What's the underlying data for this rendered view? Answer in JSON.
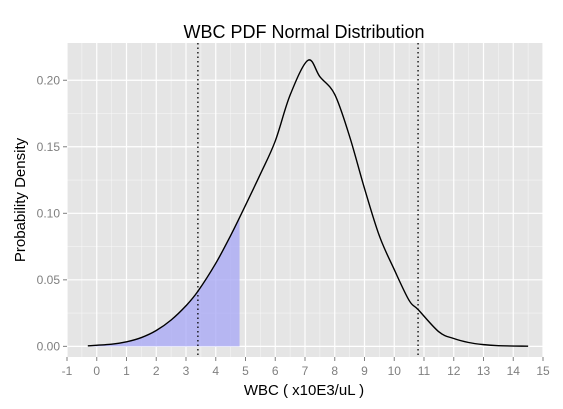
{
  "chart_data": {
    "type": "line",
    "title": "WBC PDF Normal Distribution",
    "xlabel": "WBC ( x10E3/uL )",
    "ylabel": "Probability Density",
    "xlim": [
      -1,
      15
    ],
    "ylim": [
      -0.008,
      0.228
    ],
    "x_ticks": [
      -1,
      0,
      1,
      2,
      3,
      4,
      5,
      6,
      7,
      8,
      9,
      10,
      11,
      12,
      13,
      14,
      15
    ],
    "y_ticks": [
      0,
      0.05,
      0.1,
      0.15,
      0.2
    ],
    "x_tick_labels": [
      "-1",
      "0",
      "1",
      "2",
      "3",
      "4",
      "5",
      "6",
      "7",
      "8",
      "9",
      "10",
      "11",
      "12",
      "13",
      "14",
      "15"
    ],
    "y_tick_labels": [
      "0.00",
      "0.05",
      "0.10",
      "0.15",
      "0.20"
    ],
    "series": [
      {
        "x": [
          -0.3,
          0.5,
          1.0,
          1.5,
          2.0,
          2.5,
          3.0,
          3.4,
          4.0,
          4.5,
          4.8,
          5.5,
          6.0,
          6.5,
          7.1,
          7.5,
          8.0,
          8.5,
          9.0,
          9.5,
          10.0,
          10.5,
          10.8,
          11.5,
          12.0,
          12.5,
          13.0,
          13.5,
          14.5
        ],
        "y": [
          0.0004,
          0.0016,
          0.0034,
          0.0066,
          0.0119,
          0.0198,
          0.0305,
          0.0414,
          0.0624,
          0.0833,
          0.0968,
          0.1295,
          0.1543,
          0.1889,
          0.215,
          0.2027,
          0.1893,
          0.1577,
          0.1187,
          0.083,
          0.0577,
          0.0345,
          0.0277,
          0.0109,
          0.0059,
          0.0029,
          0.0013,
          0.0005,
          0.0001
        ]
      }
    ],
    "shaded_region": {
      "x_from": -0.3,
      "x_to": 4.8,
      "color": "#a6a6f5"
    },
    "reference_lines": [
      3.4,
      10.8
    ],
    "line_color": "#000000",
    "panel_background": "#e5e5e5",
    "grid": true,
    "grid_color": "#ffffff"
  }
}
